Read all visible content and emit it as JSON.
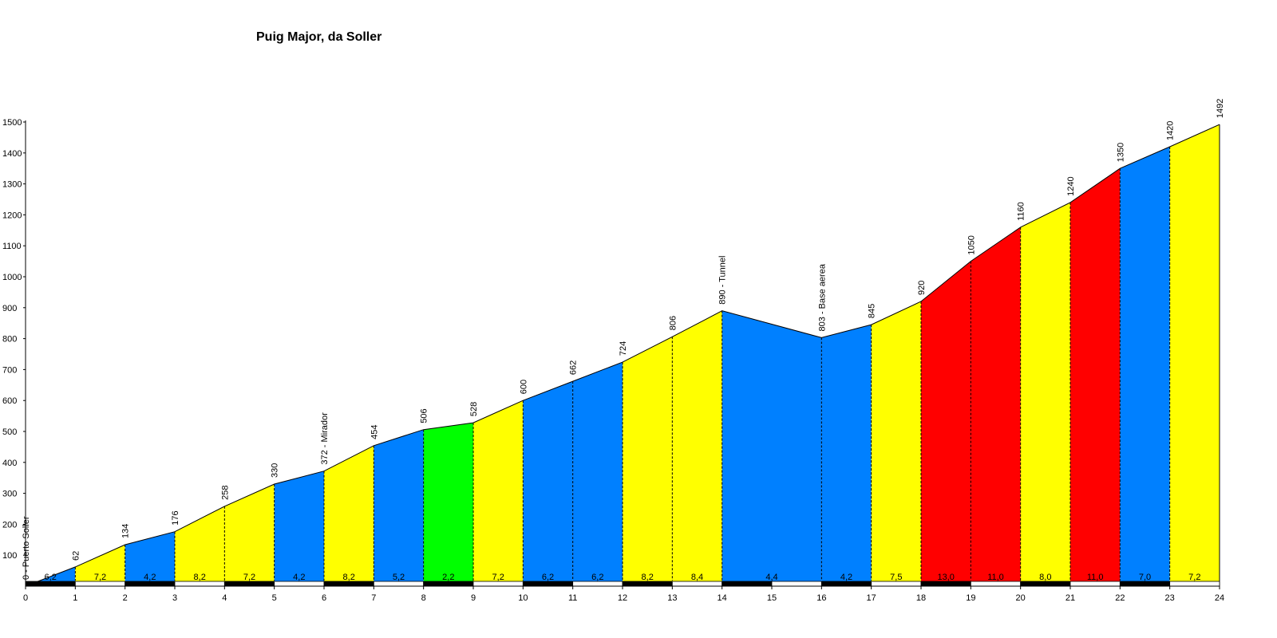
{
  "chart_data": {
    "type": "area",
    "title": "Puig Major, da Soller",
    "xlabel": "",
    "ylabel": "",
    "xlim": [
      0,
      24
    ],
    "ylim": [
      0,
      1500
    ],
    "grid": false,
    "x_ticks": [
      "0",
      "1",
      "2",
      "3",
      "4",
      "5",
      "6",
      "7",
      "8",
      "9",
      "10",
      "11",
      "12",
      "13",
      "14",
      "15",
      "16",
      "17",
      "18",
      "19",
      "20",
      "21",
      "22",
      "23",
      "24"
    ],
    "y_ticks": [
      "100",
      "200",
      "300",
      "400",
      "500",
      "600",
      "700",
      "800",
      "900",
      "1000",
      "1100",
      "1200",
      "1300",
      "1400",
      "1500"
    ],
    "points": [
      {
        "x": 0,
        "y": 0,
        "label": "0 - Puerto Soller"
      },
      {
        "x": 1,
        "y": 62,
        "label": "62"
      },
      {
        "x": 2,
        "y": 134,
        "label": "134"
      },
      {
        "x": 3,
        "y": 176,
        "label": "176"
      },
      {
        "x": 4,
        "y": 258,
        "label": "258"
      },
      {
        "x": 5,
        "y": 330,
        "label": "330"
      },
      {
        "x": 6,
        "y": 372,
        "label": "372 - Mirador"
      },
      {
        "x": 7,
        "y": 454,
        "label": "454"
      },
      {
        "x": 8,
        "y": 506,
        "label": "506"
      },
      {
        "x": 9,
        "y": 528,
        "label": "528"
      },
      {
        "x": 10,
        "y": 600,
        "label": "600"
      },
      {
        "x": 11,
        "y": 662,
        "label": "662"
      },
      {
        "x": 12,
        "y": 724,
        "label": "724"
      },
      {
        "x": 13,
        "y": 806,
        "label": "806"
      },
      {
        "x": 14,
        "y": 890,
        "label": "890 - Tunnel"
      },
      {
        "x": 16,
        "y": 803,
        "label": "803 - Base aerea"
      },
      {
        "x": 17,
        "y": 845,
        "label": "845"
      },
      {
        "x": 18,
        "y": 920,
        "label": "920"
      },
      {
        "x": 19,
        "y": 1050,
        "label": "1050"
      },
      {
        "x": 20,
        "y": 1160,
        "label": "1160"
      },
      {
        "x": 21,
        "y": 1240,
        "label": "1240"
      },
      {
        "x": 22,
        "y": 1350,
        "label": "1350"
      },
      {
        "x": 23,
        "y": 1420,
        "label": "1420"
      },
      {
        "x": 24,
        "y": 1492,
        "label": "1492"
      }
    ],
    "segments": [
      {
        "from": 0,
        "to": 1,
        "gradient": "6,2",
        "color": "#0080ff"
      },
      {
        "from": 1,
        "to": 2,
        "gradient": "7,2",
        "color": "#ffff00"
      },
      {
        "from": 2,
        "to": 3,
        "gradient": "4,2",
        "color": "#0080ff"
      },
      {
        "from": 3,
        "to": 4,
        "gradient": "8,2",
        "color": "#ffff00"
      },
      {
        "from": 4,
        "to": 5,
        "gradient": "7,2",
        "color": "#ffff00"
      },
      {
        "from": 5,
        "to": 6,
        "gradient": "4,2",
        "color": "#0080ff"
      },
      {
        "from": 6,
        "to": 7,
        "gradient": "8,2",
        "color": "#ffff00"
      },
      {
        "from": 7,
        "to": 8,
        "gradient": "5,2",
        "color": "#0080ff"
      },
      {
        "from": 8,
        "to": 9,
        "gradient": "2,2",
        "color": "#00ff00"
      },
      {
        "from": 9,
        "to": 10,
        "gradient": "7,2",
        "color": "#ffff00"
      },
      {
        "from": 10,
        "to": 11,
        "gradient": "6,2",
        "color": "#0080ff"
      },
      {
        "from": 11,
        "to": 12,
        "gradient": "6,2",
        "color": "#0080ff"
      },
      {
        "from": 12,
        "to": 13,
        "gradient": "8,2",
        "color": "#ffff00"
      },
      {
        "from": 13,
        "to": 14,
        "gradient": "8,4",
        "color": "#ffff00"
      },
      {
        "from": 14,
        "to": 16,
        "gradient": "4,4",
        "color": "#0080ff"
      },
      {
        "from": 16,
        "to": 17,
        "gradient": "4,2",
        "color": "#0080ff"
      },
      {
        "from": 17,
        "to": 18,
        "gradient": "7,5",
        "color": "#ffff00"
      },
      {
        "from": 18,
        "to": 19,
        "gradient": "13,0",
        "color": "#ff0000"
      },
      {
        "from": 19,
        "to": 20,
        "gradient": "11,0",
        "color": "#ff0000"
      },
      {
        "from": 20,
        "to": 21,
        "gradient": "8,0",
        "color": "#ffff00"
      },
      {
        "from": 21,
        "to": 22,
        "gradient": "11,0",
        "color": "#ff0000"
      },
      {
        "from": 22,
        "to": 23,
        "gradient": "7,0",
        "color": "#0080ff"
      },
      {
        "from": 23,
        "to": 24,
        "gradient": "7,2",
        "color": "#ffff00"
      }
    ]
  }
}
